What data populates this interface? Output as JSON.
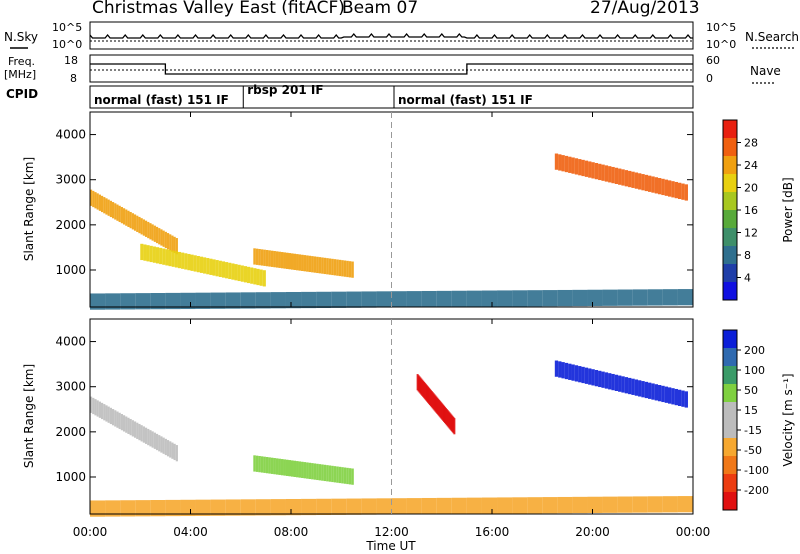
{
  "header": {
    "title": "Christmas Valley East (fitACF)",
    "beam": "Beam 07",
    "date": "27/Aug/2013"
  },
  "summary": {
    "nsky_label": "N.Sky",
    "nsearch_label": "N.Search",
    "nsky_ticks": [
      "10^5",
      "10^0"
    ],
    "freq_label_lines": [
      "Freq.",
      "[MHz]"
    ],
    "freq_ticks": [
      "18",
      "8"
    ],
    "nave_label": "Nave",
    "nave_ticks": [
      "60",
      "0"
    ],
    "cpid_label": "CPID",
    "cpid_segments": [
      {
        "label": "normal (fast) 151 IF",
        "start_hr": 0.0,
        "end_hr": 6.1
      },
      {
        "label": "rbsp 201 IF",
        "start_hr": 6.1,
        "end_hr": 12.1
      },
      {
        "label": "normal (fast) 151 IF",
        "start_hr": 12.1,
        "end_hr": 24.0
      }
    ]
  },
  "axes": {
    "x_ticks": [
      "00:00",
      "04:00",
      "08:00",
      "12:00",
      "16:00",
      "20:00",
      "00:00"
    ],
    "x_label": "Time UT",
    "y_label": "Slant Range [km]",
    "y_ticks": [
      "1000",
      "2000",
      "3000",
      "4000"
    ]
  },
  "colorbars": {
    "power": {
      "label": "Power [dB]",
      "ticks": [
        "4",
        "8",
        "12",
        "16",
        "20",
        "24",
        "28"
      ],
      "colors": [
        "#1010e0",
        "#1f3ea8",
        "#2f6f8e",
        "#3e8f6a",
        "#58aa3a",
        "#a8c820",
        "#e8d010",
        "#f0a010",
        "#f06010",
        "#e82010"
      ]
    },
    "velocity": {
      "label": "Velocity [m s⁻¹]",
      "ticks": [
        "200",
        "100",
        "50",
        "15",
        "-15",
        "-50",
        "-100",
        "-200"
      ],
      "colors": [
        "#0b1fd8",
        "#2f6ab0",
        "#3a9b68",
        "#7fd040",
        "#bcbcbc",
        "#bcbcbc",
        "#f6a830",
        "#f07818",
        "#ec3c10",
        "#e01010"
      ]
    }
  },
  "chart_data": {
    "type": "heatmap",
    "title": "Christmas Valley East (fitACF)",
    "xlabel": "Time UT",
    "ylabel": "Slant Range [km]",
    "xlim": [
      0,
      24
    ],
    "ylim": [
      180,
      4500
    ],
    "panels": [
      {
        "name": "Power [dB]",
        "clim": [
          0,
          30
        ],
        "features": [
          {
            "desc": "morning band",
            "t": [
              0.0,
              3.5
            ],
            "r": [
              2600,
              1500
            ],
            "value": 22
          },
          {
            "desc": "lower descending band",
            "t": [
              2.0,
              7.0
            ],
            "r": [
              1400,
              800
            ],
            "value": 20
          },
          {
            "desc": "mid-day band",
            "t": [
              6.5,
              10.5
            ],
            "r": [
              1300,
              1000
            ],
            "value": 22
          },
          {
            "desc": "afternoon U-shaped echo",
            "t": [
              18.5,
              23.8
            ],
            "r": [
              3400,
              2700
            ],
            "value": 24
          },
          {
            "desc": "near-range ground scatter",
            "t": [
              0.0,
              24.0
            ],
            "r": [
              300,
              400
            ],
            "value": 8
          }
        ]
      },
      {
        "name": "Velocity [m s-1]",
        "clim": [
          -200,
          200
        ],
        "features": [
          {
            "desc": "morning band",
            "t": [
              0.0,
              3.5
            ],
            "r": [
              2600,
              1500
            ],
            "value": 0
          },
          {
            "desc": "mid-day band",
            "t": [
              6.5,
              10.5
            ],
            "r": [
              1300,
              1000
            ],
            "value": 40
          },
          {
            "desc": "12-15 UT streaks",
            "t": [
              13.0,
              14.5
            ],
            "r": [
              3100,
              2100
            ],
            "value": -200
          },
          {
            "desc": "afternoon U-shaped echo",
            "t": [
              18.5,
              23.8
            ],
            "r": [
              3400,
              2700
            ],
            "value": 200
          },
          {
            "desc": "near-range scatter",
            "t": [
              0.0,
              24.0
            ],
            "r": [
              300,
              400
            ],
            "value": -60
          }
        ]
      }
    ]
  }
}
